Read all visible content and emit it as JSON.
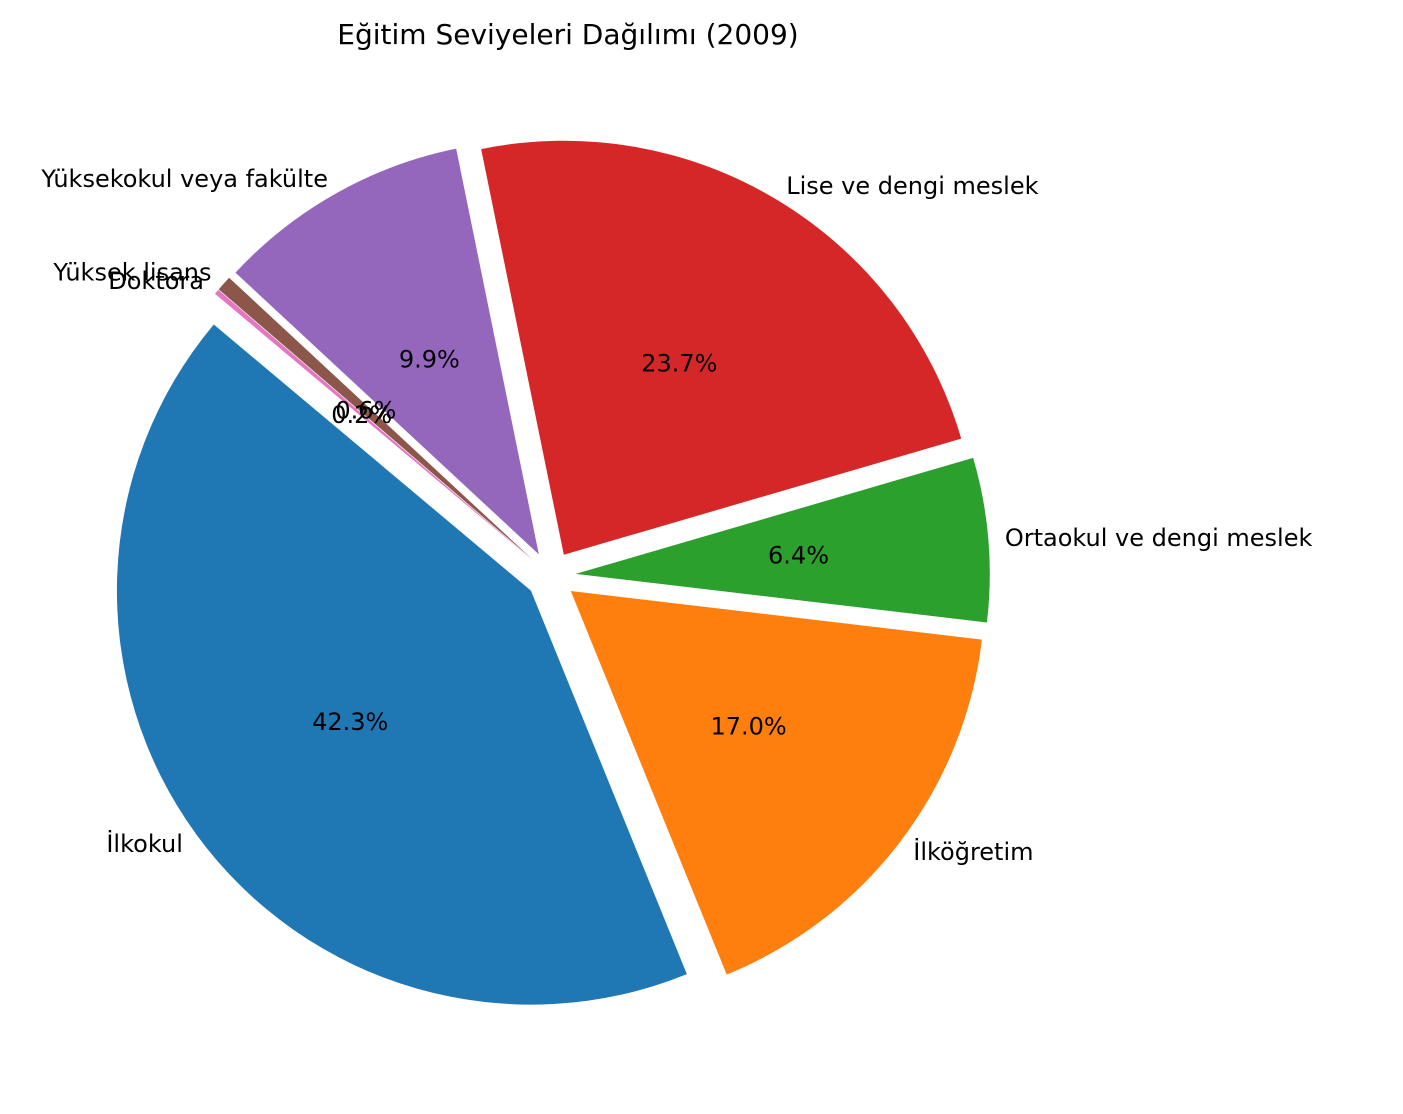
{
  "chart_data": {
    "type": "pie",
    "title": "Eğitim Seviyeleri Dağılımı (2009)",
    "start_angle_deg": 140,
    "direction": "counterclockwise",
    "exploded": true,
    "slices": [
      {
        "label": "İlkokul",
        "value": 42.3,
        "pct_label": "42.3%",
        "color": "#1f77b4"
      },
      {
        "label": "İlköğretim",
        "value": 17.0,
        "pct_label": "17.0%",
        "color": "#ff7f0e"
      },
      {
        "label": "Ortaokul ve dengi meslek",
        "value": 6.4,
        "pct_label": "6.4%",
        "color": "#2ca02c"
      },
      {
        "label": "Lise ve dengi meslek",
        "value": 23.7,
        "pct_label": "23.7%",
        "color": "#d62728"
      },
      {
        "label": "Yüksekokul veya fakülte",
        "value": 9.9,
        "pct_label": "9.9%",
        "color": "#9467bd"
      },
      {
        "label": "Yüksek lisans",
        "value": 0.6,
        "pct_label": "0.6%",
        "color": "#8c564b"
      },
      {
        "label": "Doktora",
        "value": 0.2,
        "pct_label": "0.2%",
        "color": "#e377c2"
      }
    ]
  }
}
